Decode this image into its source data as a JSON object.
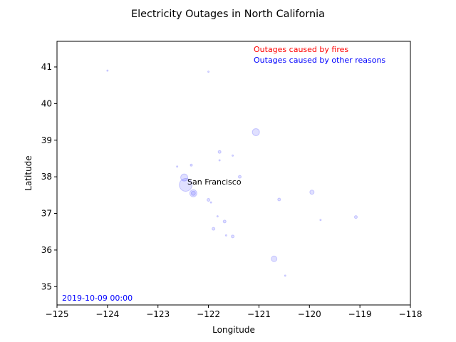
{
  "chart_data": {
    "type": "scatter",
    "title": "Electricity Outages in North California",
    "xlabel": "Longitude",
    "ylabel": "Latitude",
    "xlim": [
      -125,
      -118
    ],
    "ylim": [
      34.5,
      41.7
    ],
    "xticks": [
      -125,
      -124,
      -123,
      -122,
      -121,
      -120,
      -119,
      -118
    ],
    "xtick_labels": [
      "−125",
      "−124",
      "−123",
      "−122",
      "−121",
      "−120",
      "−119",
      "−118"
    ],
    "yticks": [
      35,
      36,
      37,
      38,
      39,
      40,
      41
    ],
    "ytick_labels": [
      "35",
      "36",
      "37",
      "38",
      "39",
      "40",
      "41"
    ],
    "grid": false,
    "legend_placement": "top-right",
    "legend": [
      {
        "label": "Outages caused by fires",
        "color": "#ff0000"
      },
      {
        "label": "Outages caused by other reasons",
        "color": "#0000ff"
      }
    ],
    "annotations": [
      {
        "text": "San Francisco",
        "x": -122.45,
        "y": 37.77
      }
    ],
    "timestamp": {
      "text": "2019-10-09 00:00",
      "color": "#0000ff"
    },
    "series": [
      {
        "name": "Outages caused by other reasons",
        "color": "#0000ff",
        "points": [
          {
            "x": -122.45,
            "y": 37.78,
            "size": 9
          },
          {
            "x": -122.48,
            "y": 37.98,
            "size": 5
          },
          {
            "x": -122.3,
            "y": 37.55,
            "size": 5
          },
          {
            "x": -122.3,
            "y": 37.55,
            "size": 3
          },
          {
            "x": -121.06,
            "y": 39.22,
            "size": 5
          },
          {
            "x": -120.7,
            "y": 35.76,
            "size": 4
          },
          {
            "x": -119.95,
            "y": 37.58,
            "size": 3
          },
          {
            "x": -122.0,
            "y": 37.37,
            "size": 2
          },
          {
            "x": -121.78,
            "y": 38.68,
            "size": 2
          },
          {
            "x": -121.38,
            "y": 38.0,
            "size": 2
          },
          {
            "x": -121.9,
            "y": 36.58,
            "size": 2
          },
          {
            "x": -121.52,
            "y": 36.37,
            "size": 2
          },
          {
            "x": -121.68,
            "y": 36.78,
            "size": 2
          },
          {
            "x": -119.08,
            "y": 36.9,
            "size": 2
          },
          {
            "x": -120.6,
            "y": 37.38,
            "size": 2
          },
          {
            "x": -122.34,
            "y": 38.32,
            "size": 1.5
          },
          {
            "x": -124.0,
            "y": 40.9,
            "size": 1
          },
          {
            "x": -122.0,
            "y": 40.87,
            "size": 1
          },
          {
            "x": -121.78,
            "y": 38.45,
            "size": 1
          },
          {
            "x": -121.52,
            "y": 38.58,
            "size": 1
          },
          {
            "x": -122.62,
            "y": 38.28,
            "size": 1
          },
          {
            "x": -120.48,
            "y": 35.3,
            "size": 1
          },
          {
            "x": -119.78,
            "y": 36.82,
            "size": 1
          },
          {
            "x": -121.82,
            "y": 36.92,
            "size": 1
          },
          {
            "x": -121.65,
            "y": 36.4,
            "size": 1
          },
          {
            "x": -121.95,
            "y": 37.3,
            "size": 1
          }
        ]
      }
    ]
  }
}
